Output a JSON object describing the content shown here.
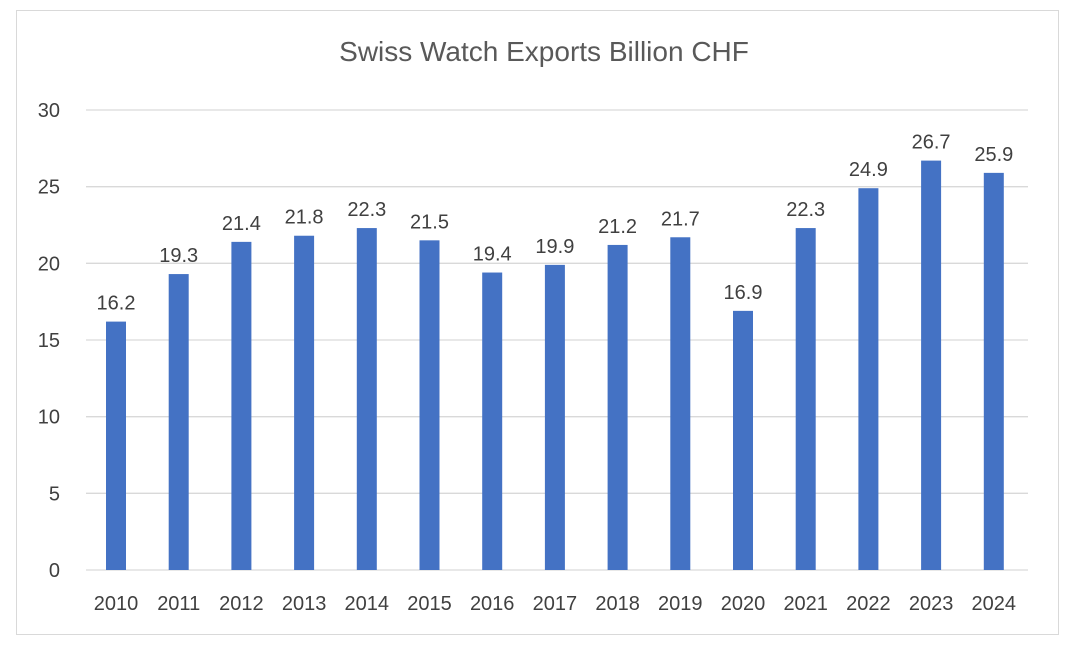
{
  "chart_data": {
    "type": "bar",
    "title": "Swiss Watch Exports Billion CHF",
    "xlabel": "",
    "ylabel": "",
    "categories": [
      "2010",
      "2011",
      "2012",
      "2013",
      "2014",
      "2015",
      "2016",
      "2017",
      "2018",
      "2019",
      "2020",
      "2021",
      "2022",
      "2023",
      "2024"
    ],
    "values": [
      16.2,
      19.3,
      21.4,
      21.8,
      22.3,
      21.5,
      19.4,
      19.9,
      21.2,
      21.7,
      16.9,
      22.3,
      24.9,
      26.7,
      25.9
    ],
    "value_labels": [
      "16.2",
      "19.3",
      "21.4",
      "21.8",
      "22.3",
      "21.5",
      "19.4",
      "19.9",
      "21.2",
      "21.7",
      "16.9",
      "22.3",
      "24.9",
      "26.7",
      "25.9"
    ],
    "ylim": [
      0,
      30
    ],
    "yticks": [
      0,
      5,
      10,
      15,
      20,
      25,
      30
    ],
    "grid": true,
    "legend": "none",
    "colors": {
      "bar": "#4472C4",
      "grid": "#d9d9d9",
      "text": "#404040",
      "title": "#595959"
    }
  }
}
